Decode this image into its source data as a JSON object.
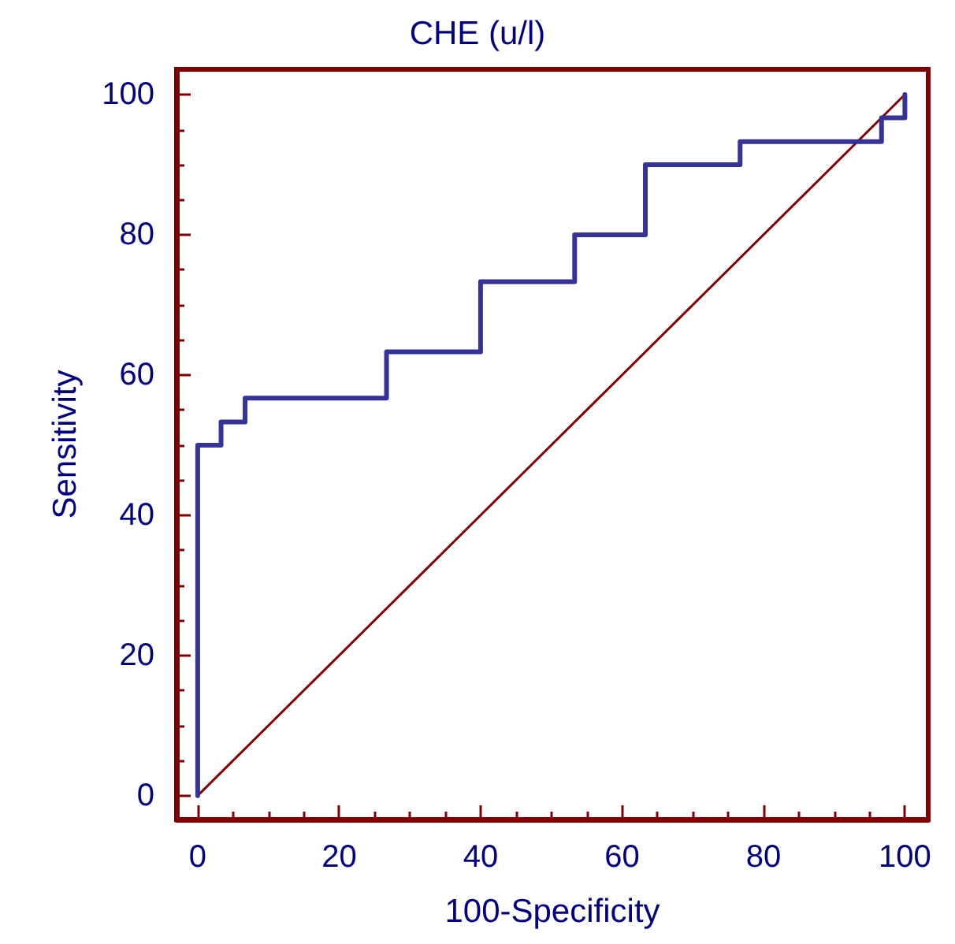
{
  "chart_data": {
    "type": "step",
    "title": "CHE (u/l)",
    "xlabel": "100-Specificity",
    "ylabel": "Sensitivity",
    "x": [
      0,
      0,
      3.3,
      6.7,
      26.7,
      40,
      53.3,
      63.3,
      76.7,
      96.7,
      100
    ],
    "series": [
      {
        "color": "#333399",
        "values": [
          0,
          50,
          53.3,
          56.7,
          63.3,
          73.3,
          80,
          90,
          93.3,
          96.7,
          100
        ]
      },
      {
        "type": "line",
        "color": "#800000",
        "x": [
          0,
          100
        ],
        "values": [
          0,
          100
        ]
      }
    ],
    "xlim": [
      -3,
      103.3
    ],
    "ylim": [
      -3.4,
      103.6
    ],
    "xticks": [
      0,
      {
        "value": 5,
        "label": null
      },
      {
        "value": 10,
        "label": null
      },
      {
        "value": 15,
        "label": null
      },
      20,
      {
        "value": 25,
        "label": null
      },
      {
        "value": 30,
        "label": null
      },
      {
        "value": 35,
        "label": null
      },
      40,
      {
        "value": 45,
        "label": null
      },
      {
        "value": 50,
        "label": null
      },
      {
        "value": 55,
        "label": null
      },
      60,
      {
        "value": 65,
        "label": null
      },
      {
        "value": 70,
        "label": null
      },
      {
        "value": 75,
        "label": null
      },
      80,
      {
        "value": 85,
        "label": null
      },
      {
        "value": 90,
        "label": null
      },
      {
        "value": 95,
        "label": null
      },
      100
    ],
    "yticks": [
      0,
      {
        "value": 5,
        "label": null
      },
      {
        "value": 10,
        "label": null
      },
      {
        "value": 15,
        "label": null
      },
      20,
      {
        "value": 25,
        "label": null
      },
      {
        "value": 30,
        "label": null
      },
      {
        "value": 35,
        "label": null
      },
      40,
      {
        "value": 45,
        "label": null
      },
      {
        "value": 50,
        "label": null
      },
      {
        "value": 55,
        "label": null
      },
      60,
      {
        "value": 65,
        "label": null
      },
      {
        "value": 70,
        "label": null
      },
      {
        "value": 75,
        "label": null
      },
      80,
      {
        "value": 85,
        "label": null
      },
      {
        "value": 90,
        "label": null
      },
      {
        "value": 95,
        "label": null
      },
      100
    ],
    "grid": false,
    "marker": "none",
    "line_style": "solid"
  }
}
